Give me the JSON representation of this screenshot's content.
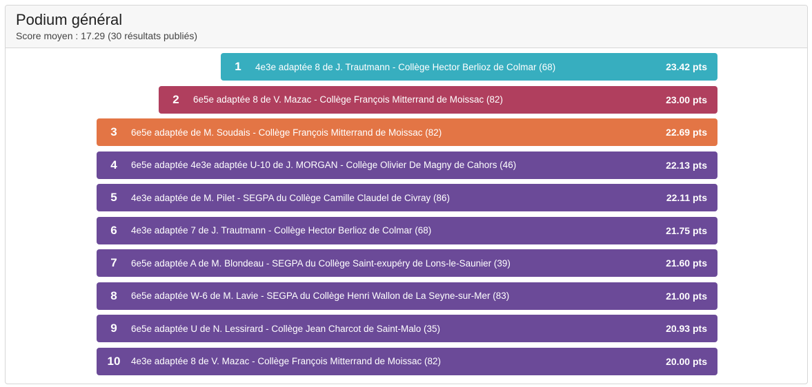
{
  "header": {
    "title": "Podium général",
    "subtitle": "Score moyen : 17.29 (30 résultats publiés)"
  },
  "colors": {
    "first": "#37aebf",
    "second": "#b03f5e",
    "third": "#e37545",
    "others": "#6b4a98"
  },
  "podium": [
    {
      "rank": "1",
      "label": "4e3e adaptée 8 de J. Trautmann - Collège Hector Berlioz de Colmar (68)",
      "points": "23.42 pts"
    },
    {
      "rank": "2",
      "label": "6e5e adaptée 8 de V. Mazac - Collège François Mitterrand de Moissac (82)",
      "points": "23.00 pts"
    },
    {
      "rank": "3",
      "label": "6e5e adaptée de M. Soudais - Collège François Mitterrand de Moissac (82)",
      "points": "22.69 pts"
    },
    {
      "rank": "4",
      "label": "6e5e adaptée 4e3e adaptée U-10 de J. MORGAN - Collège Olivier De Magny de Cahors (46)",
      "points": "22.13 pts"
    },
    {
      "rank": "5",
      "label": "4e3e adaptée de M. Pilet - SEGPA du Collège Camille Claudel de Civray (86)",
      "points": "22.11 pts"
    },
    {
      "rank": "6",
      "label": "4e3e adaptée 7 de J. Trautmann - Collège Hector Berlioz de Colmar (68)",
      "points": "21.75 pts"
    },
    {
      "rank": "7",
      "label": "6e5e adaptée A de M. Blondeau - SEGPA du Collège Saint-exupéry de Lons-le-Saunier (39)",
      "points": "21.60 pts"
    },
    {
      "rank": "8",
      "label": "6e5e adaptée W-6 de M. Lavie - SEGPA du Collège Henri Wallon de La Seyne-sur-Mer (83)",
      "points": "21.00 pts"
    },
    {
      "rank": "9",
      "label": "6e5e adaptée U de N. Lessirard - Collège Jean Charcot de Saint-Malo (35)",
      "points": "20.93 pts"
    },
    {
      "rank": "10",
      "label": "4e3e adaptée 8 de V. Mazac - Collège François Mitterrand de Moissac (82)",
      "points": "20.00 pts"
    }
  ]
}
